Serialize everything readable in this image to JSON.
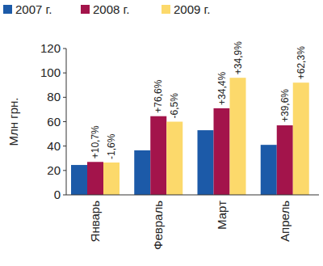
{
  "chart_data": {
    "type": "bar",
    "ylabel": "Млн грн.",
    "categories": [
      "Январь",
      "Февраль",
      "Март",
      "Апрель"
    ],
    "series": [
      {
        "name": "2007 г.",
        "color": "#1c5aa8",
        "values": [
          24.5,
          36.5,
          53,
          41
        ]
      },
      {
        "name": "2008 г.",
        "color": "#a3144b",
        "values": [
          27,
          64.5,
          71,
          57
        ],
        "changes": [
          10.7,
          76.6,
          34.4,
          39.6
        ],
        "change_labels": [
          "+10,7%",
          "+76,6%",
          "+34,4%",
          "+39,6%"
        ]
      },
      {
        "name": "2009 г.",
        "color": "#fcd96b",
        "values": [
          26.5,
          60,
          96,
          92
        ],
        "changes": [
          -1.6,
          -6.5,
          34.9,
          62.3
        ],
        "change_labels": [
          "-1,6%",
          "-6,5%",
          "+34,9%",
          "+62,3%"
        ]
      }
    ],
    "ylim": [
      0,
      120
    ],
    "yticks": [
      0,
      20,
      40,
      60,
      80,
      100,
      120
    ],
    "grid": false,
    "legend": "top"
  }
}
